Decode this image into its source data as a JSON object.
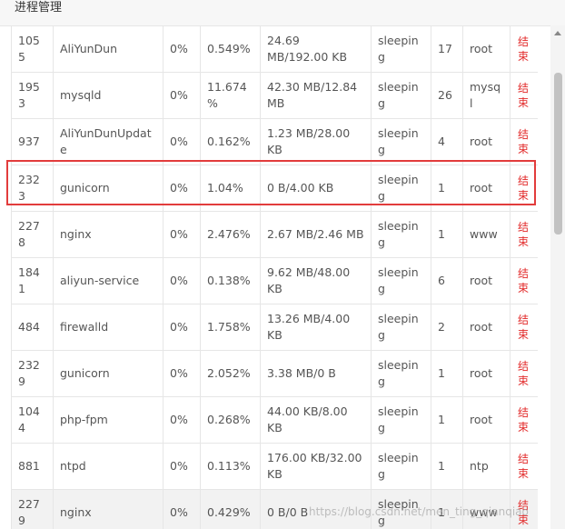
{
  "dialog": {
    "title": "进程管理"
  },
  "action_label": "结束",
  "highlighted_row_index": 3,
  "watermark": "https://blog.csdn.net/men_ting_qianqiao",
  "rows": [
    {
      "pid": "1055",
      "name": "AliYunDun",
      "cpu": "0%",
      "mem": "0.549%",
      "io": "24.69 MB/192.00 KB",
      "status": "sleeping",
      "threads": "17",
      "user": "root"
    },
    {
      "pid": "1953",
      "name": "mysqld",
      "cpu": "0%",
      "mem": "11.674%",
      "io": "42.30 MB/12.84 MB",
      "status": "sleeping",
      "threads": "26",
      "user": "mysql"
    },
    {
      "pid": "937",
      "name": "AliYunDunUpdate",
      "cpu": "0%",
      "mem": "0.162%",
      "io": "1.23 MB/28.00 KB",
      "status": "sleeping",
      "threads": "4",
      "user": "root"
    },
    {
      "pid": "2323",
      "name": "gunicorn",
      "cpu": "0%",
      "mem": "1.04%",
      "io": "0 B/4.00 KB",
      "status": "sleeping",
      "threads": "1",
      "user": "root"
    },
    {
      "pid": "2278",
      "name": "nginx",
      "cpu": "0%",
      "mem": "2.476%",
      "io": "2.67 MB/2.46 MB",
      "status": "sleeping",
      "threads": "1",
      "user": "www"
    },
    {
      "pid": "1841",
      "name": "aliyun-service",
      "cpu": "0%",
      "mem": "0.138%",
      "io": "9.62 MB/48.00 KB",
      "status": "sleeping",
      "threads": "6",
      "user": "root"
    },
    {
      "pid": "484",
      "name": "firewalld",
      "cpu": "0%",
      "mem": "1.758%",
      "io": "13.26 MB/4.00 KB",
      "status": "sleeping",
      "threads": "2",
      "user": "root"
    },
    {
      "pid": "2329",
      "name": "gunicorn",
      "cpu": "0%",
      "mem": "2.052%",
      "io": "3.38 MB/0 B",
      "status": "sleeping",
      "threads": "1",
      "user": "root"
    },
    {
      "pid": "1044",
      "name": "php-fpm",
      "cpu": "0%",
      "mem": "0.268%",
      "io": "44.00 KB/8.00 KB",
      "status": "sleeping",
      "threads": "1",
      "user": "root"
    },
    {
      "pid": "881",
      "name": "ntpd",
      "cpu": "0%",
      "mem": "0.113%",
      "io": "176.00 KB/32.00 KB",
      "status": "sleeping",
      "threads": "1",
      "user": "ntp"
    },
    {
      "pid": "2279",
      "name": "nginx",
      "cpu": "0%",
      "mem": "0.429%",
      "io": "0 B/0 B",
      "status": "sleeping",
      "threads": "1",
      "user": "www"
    }
  ]
}
